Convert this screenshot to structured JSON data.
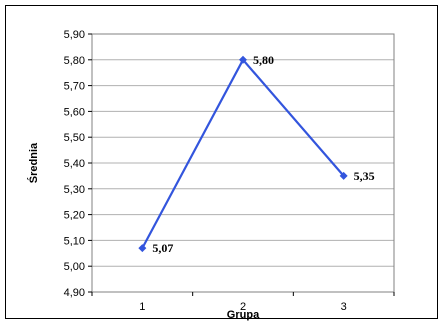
{
  "chart_data": {
    "type": "line",
    "categories": [
      "1",
      "2",
      "3"
    ],
    "series": [
      {
        "values": [
          5.07,
          5.8,
          5.35
        ],
        "labels": [
          "5,07",
          "5,80",
          "5,35"
        ]
      }
    ],
    "xlabel": "Grupa",
    "ylabel": "Średnia",
    "ylim": [
      4.9,
      5.9
    ],
    "ystep": 0.1,
    "yticks": [
      "4,90",
      "5,00",
      "5,10",
      "5,20",
      "5,30",
      "5,40",
      "5,50",
      "5,60",
      "5,70",
      "5,80",
      "5,90"
    ],
    "grid": "horizontal",
    "legend": "none",
    "colors": {
      "line": "#3355dd",
      "plot_background": "#ffffff",
      "grid": "#b0b0b0"
    }
  }
}
